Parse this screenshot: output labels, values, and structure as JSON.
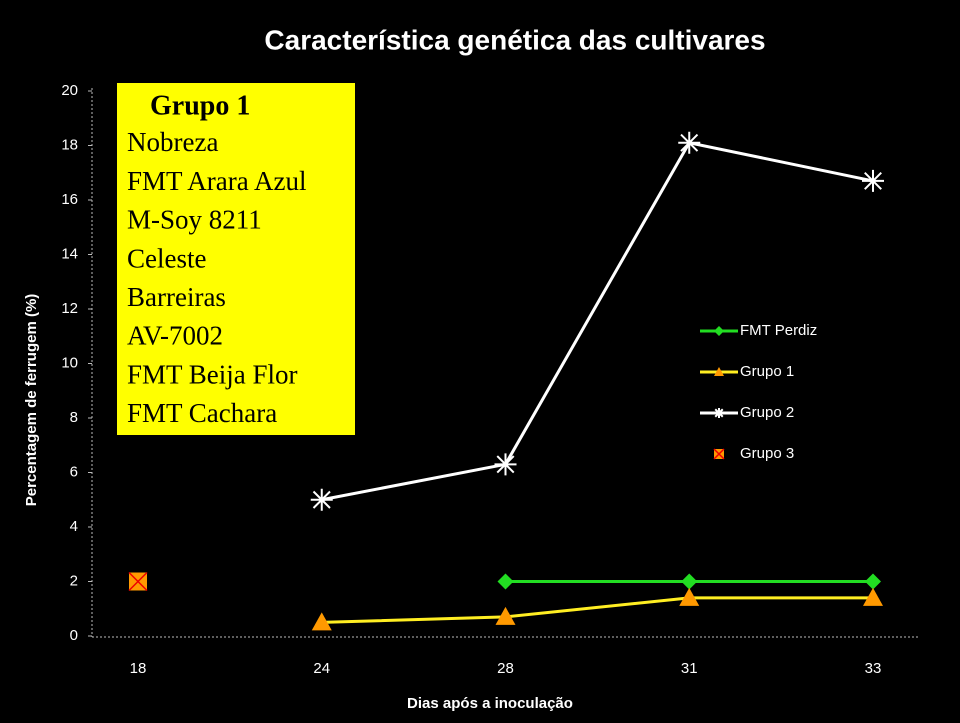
{
  "chart_data": {
    "type": "line",
    "title": "Característica genética das cultivares",
    "xlabel": "Dias após a inoculação",
    "ylabel": "Percentagem de ferrugem (%)",
    "categories": [
      "18",
      "24",
      "28",
      "31",
      "33"
    ],
    "series": [
      {
        "name": "FMT Perdiz",
        "color": "#22dd22",
        "marker": "diamond",
        "marker_color": "#22dd22",
        "values": [
          null,
          null,
          2,
          2,
          2
        ]
      },
      {
        "name": "Grupo 1",
        "color": "#ffee22",
        "marker": "triangle",
        "marker_color": "#ff9900",
        "values": [
          null,
          0.5,
          0.7,
          1.4,
          1.4
        ]
      },
      {
        "name": "Grupo 2",
        "color": "#ffffff",
        "marker": "star",
        "marker_color": "#ffffff",
        "values": [
          null,
          5,
          6.3,
          18.1,
          16.7
        ]
      },
      {
        "name": "Grupo 3",
        "color": null,
        "marker": "square-x",
        "marker_color": "#ff9900",
        "values": [
          2,
          null,
          null,
          null,
          null
        ]
      }
    ],
    "ylim": [
      0,
      20
    ],
    "yticks": [
      0,
      2,
      4,
      6,
      8,
      10,
      12,
      14,
      16,
      18,
      20
    ],
    "grid": false,
    "legend": "right",
    "annotation": {
      "title": "Grupo 1",
      "lines": [
        "Nobreza",
        "FMT Arara Azul",
        "M-Soy 8211",
        "Celeste",
        "Barreiras",
        "AV-7002",
        "FMT Beija Flor",
        "FMT Cachara"
      ]
    }
  }
}
